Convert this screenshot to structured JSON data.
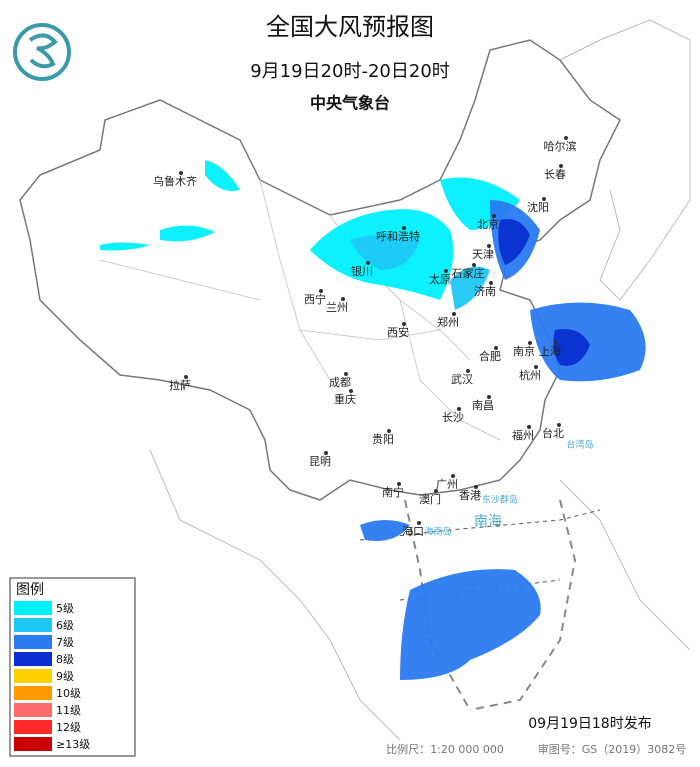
{
  "header": {
    "title": "全国大风预报图",
    "subtitle": "9月19日20时-20日20时",
    "issuer": "中央气象台"
  },
  "legend": {
    "title": "图例",
    "items": [
      {
        "label": "5级",
        "color": "#00f0ff"
      },
      {
        "label": "6级",
        "color": "#1ec8f5"
      },
      {
        "label": "7级",
        "color": "#2a7af0"
      },
      {
        "label": "8级",
        "color": "#0a2ed0"
      },
      {
        "label": "9级",
        "color": "#ffd000"
      },
      {
        "label": "10级",
        "color": "#ff9a00"
      },
      {
        "label": "11级",
        "color": "#ff6a6a"
      },
      {
        "label": "12级",
        "color": "#ff2a2a"
      },
      {
        "label": "≥13级",
        "color": "#c80000"
      }
    ]
  },
  "cities": [
    {
      "name": "哈尔滨"
    },
    {
      "name": "长春"
    },
    {
      "name": "沈阳"
    },
    {
      "name": "北京"
    },
    {
      "name": "天津"
    },
    {
      "name": "呼和浩特"
    },
    {
      "name": "石家庄"
    },
    {
      "name": "太原"
    },
    {
      "name": "济南"
    },
    {
      "name": "银川"
    },
    {
      "name": "兰州"
    },
    {
      "name": "西宁"
    },
    {
      "name": "西安"
    },
    {
      "name": "郑州"
    },
    {
      "name": "合肥"
    },
    {
      "name": "南京"
    },
    {
      "name": "上海"
    },
    {
      "name": "杭州"
    },
    {
      "name": "武汉"
    },
    {
      "name": "成都"
    },
    {
      "name": "重庆"
    },
    {
      "name": "拉萨"
    },
    {
      "name": "长沙"
    },
    {
      "name": "南昌"
    },
    {
      "name": "福州"
    },
    {
      "name": "台北"
    },
    {
      "name": "贵阳"
    },
    {
      "name": "昆明"
    },
    {
      "name": "南宁"
    },
    {
      "name": "广州"
    },
    {
      "name": "澳门"
    },
    {
      "name": "香港"
    },
    {
      "name": "海口"
    },
    {
      "name": "乌鲁木齐"
    }
  ],
  "seas": [
    {
      "name": "南海"
    },
    {
      "name": "海南岛"
    },
    {
      "name": "台湾岛"
    },
    {
      "name": "东沙群岛"
    }
  ],
  "footer": {
    "published": "09月19日18时发布",
    "scale": "比例尺：1:20 000 000",
    "approval": "审图号：GS（2019）3082号"
  }
}
